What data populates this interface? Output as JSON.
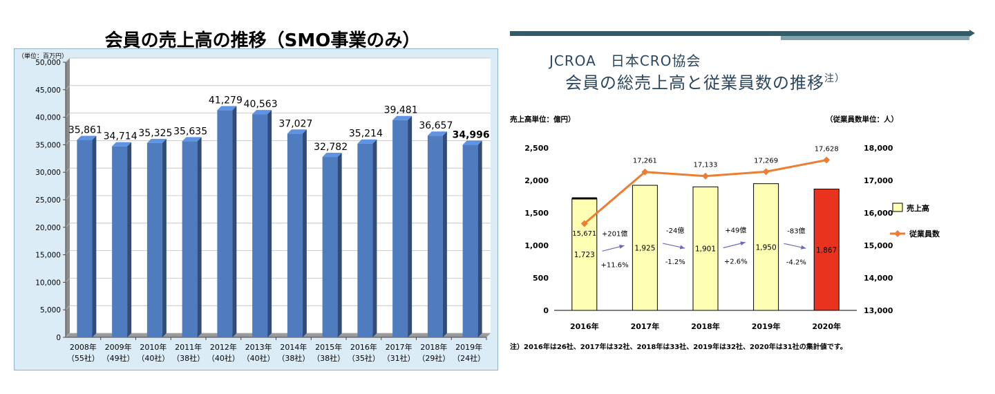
{
  "left": {
    "title": "会員の売上高の推移（SMO事業のみ）",
    "unit_label": "（単位：百万円）",
    "chart_data": {
      "type": "bar",
      "categories": [
        "2008年",
        "2009年",
        "2010年",
        "2011年",
        "2012年",
        "2013年",
        "2014年",
        "2015年",
        "2016年",
        "2017年",
        "2018年",
        "2019年"
      ],
      "sublabels": [
        "（55社）",
        "（49社）",
        "（40社）",
        "（38社）",
        "（40社）",
        "（40社）",
        "（38社）",
        "（38社）",
        "（35社）",
        "（31社）",
        "（29社）",
        "（24社）"
      ],
      "values": [
        35861,
        34714,
        35325,
        35635,
        41279,
        40563,
        37027,
        32782,
        35214,
        39481,
        36657,
        34996
      ],
      "value_labels": [
        "35,861",
        "34,714",
        "35,325",
        "35,635",
        "41,279",
        "40,563",
        "37,027",
        "32,782",
        "35,214",
        "39,481",
        "36,657",
        "34,996"
      ],
      "ylim": [
        0,
        50000
      ],
      "yticks": [
        0,
        5000,
        10000,
        15000,
        20000,
        25000,
        30000,
        35000,
        40000,
        45000,
        50000
      ],
      "ytick_labels": [
        "0",
        "5,000",
        "10,000",
        "15,000",
        "20,000",
        "25,000",
        "30,000",
        "35,000",
        "40,000",
        "45,000",
        "50,000"
      ],
      "bar_color": "#4f7bbf",
      "highlight_last": true
    }
  },
  "right": {
    "org": "JCROA　日本CRO協会",
    "title": "会員の総売上高と従業員数の推移",
    "title_note": "注）",
    "left_unit": "売上高単位：億円）",
    "right_unit": "（従業員数単位：人）",
    "chart_data": {
      "type": "bar+line",
      "categories": [
        "2016年",
        "2017年",
        "2018年",
        "2019年",
        "2020年"
      ],
      "series": [
        {
          "name": "売上高",
          "values": [
            1723,
            1925,
            1901,
            1950,
            1867
          ],
          "labels": [
            "1,723",
            "1,925",
            "1,901",
            "1,950",
            "1,867"
          ],
          "color": "#ffffb3",
          "highlight_color": "#e8331f"
        },
        {
          "name": "従業員数",
          "values": [
            15671,
            17261,
            17133,
            17269,
            17628
          ],
          "labels": [
            "15,671",
            "17,261",
            "17,133",
            "17,269",
            "17,628"
          ],
          "color": "#ed7d31"
        }
      ],
      "ylim_left": [
        0,
        2500
      ],
      "yticks_left": [
        "0",
        "500",
        "1,000",
        "1,500",
        "2,000",
        "2,500"
      ],
      "ylim_right": [
        13000,
        18000
      ],
      "yticks_right": [
        "13,000",
        "14,000",
        "15,000",
        "16,000",
        "17,000",
        "18,000"
      ],
      "changes": [
        {
          "amount": "+201億",
          "pct": "+11.6%"
        },
        {
          "amount": "-24億",
          "pct": "-1.2%"
        },
        {
          "amount": "+49億",
          "pct": "+2.6%"
        },
        {
          "amount": "-83億",
          "pct": "-4.2%"
        }
      ],
      "footnote": "注）2016年は26社、2017年は32社、2018年は33社、2019年は32社、2020年は31社の集計値です。"
    }
  }
}
